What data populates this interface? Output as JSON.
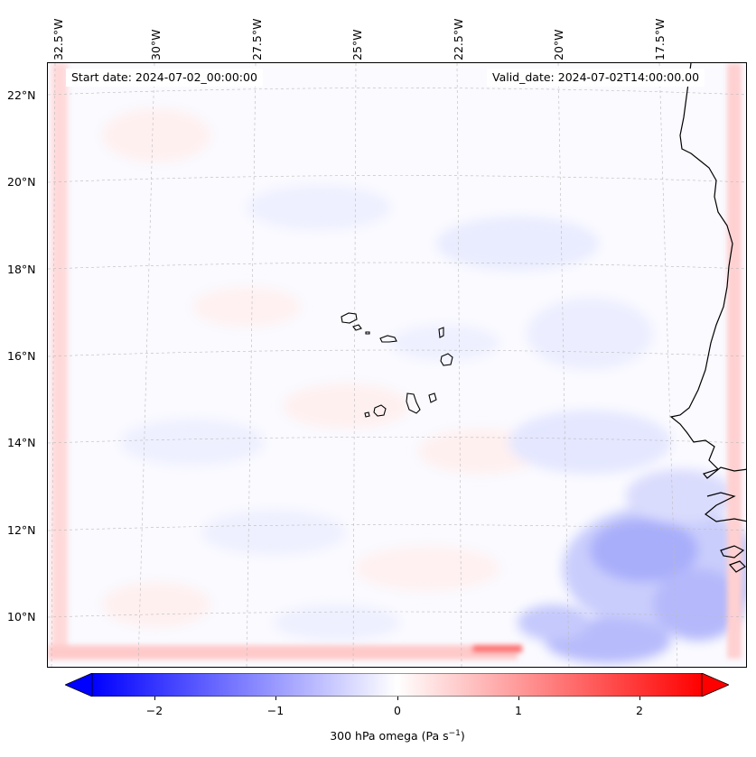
{
  "header": {
    "start_label": "Start date: 2024-07-02_00:00:00",
    "valid_label": "Valid_date: 2024-07-02T14:00:00.00"
  },
  "axes": {
    "lon_labels": [
      "32.5°W",
      "30°W",
      "27.5°W",
      "25°W",
      "22.5°W",
      "20°W",
      "17.5°W"
    ],
    "lat_labels": [
      "22°N",
      "20°N",
      "18°N",
      "16°N",
      "14°N",
      "12°N",
      "10°N"
    ]
  },
  "colorbar": {
    "ticks": [
      "−2",
      "−1",
      "0",
      "1",
      "2"
    ],
    "label_prefix": "300 hPa omega (Pa s",
    "label_exp": "−1",
    "label_suffix": ")",
    "min": -2.6,
    "max": 2.6,
    "neg_color": "#0000ff",
    "pos_color": "#ff0000"
  },
  "map": {
    "features": [
      "santo-antao",
      "sao-vicente",
      "santa-luzia",
      "sao-nicolau",
      "sal",
      "boa-vista",
      "brava",
      "fogo",
      "santiago",
      "maio",
      "africa-coastline"
    ]
  }
}
